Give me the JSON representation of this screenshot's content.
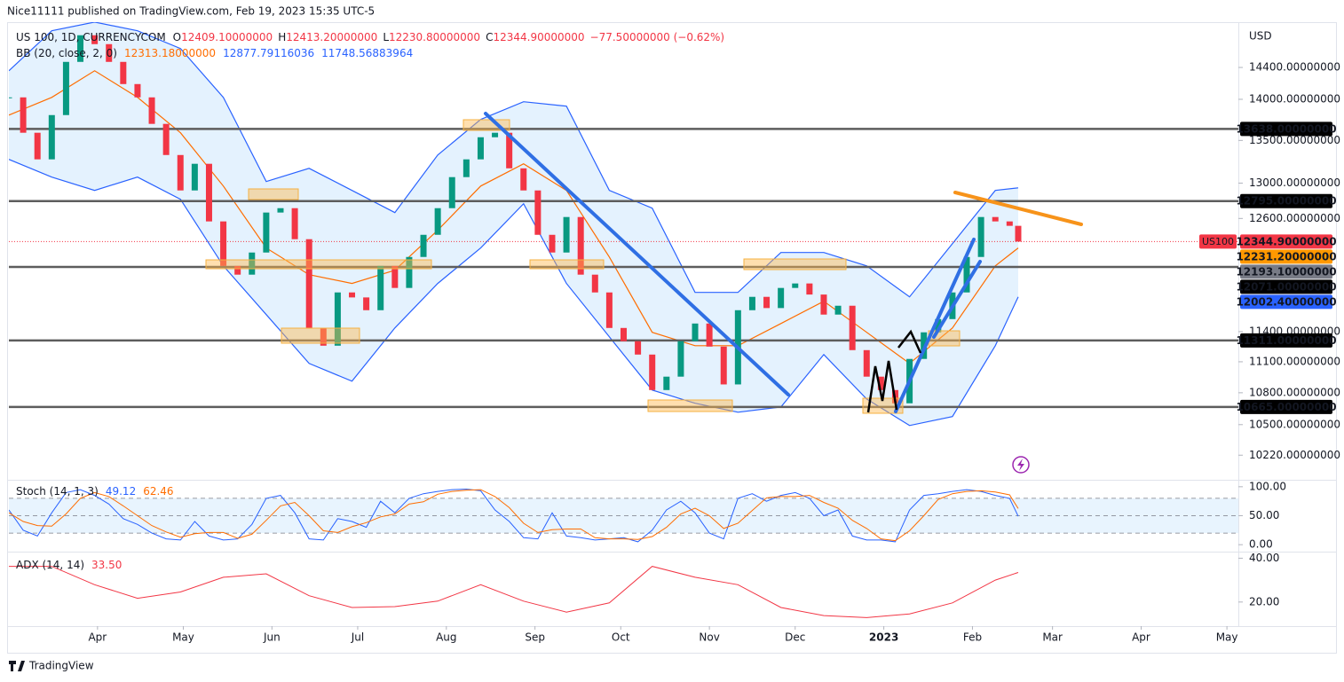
{
  "publisher": "Nice11111 published on TradingView.com, Feb 19, 2023 15:35 UTC-5",
  "brand": "TradingView",
  "chart_data": [
    {
      "type": "candlestick",
      "header": {
        "symbol": "US 100, 1D, CURRENCYCOM",
        "ohlc": [
          {
            "key": "O",
            "value": "12409.10000000"
          },
          {
            "key": "H",
            "value": "12413.20000000"
          },
          {
            "key": "L",
            "value": "12230.80000000"
          },
          {
            "key": "C",
            "value": "12344.90000000"
          }
        ],
        "change": "−77.50000000 (−0.62%)"
      },
      "bb_legend": {
        "title": "BB (20, close, 2, 0)",
        "values": [
          "12313.18000000",
          "12877.79116036",
          "11748.56883964"
        ],
        "colors": [
          "#ff6d00",
          "#2962ff",
          "#2962ff"
        ]
      },
      "currency": "USD",
      "symbol_tag": "US100",
      "log_scale": true,
      "grid": false,
      "up_color": "#089981",
      "down_color": "#f23645",
      "xlim": [
        "2022-03-01",
        "2023-05-05"
      ],
      "xticks": [
        {
          "value": "2022-04-01",
          "label": "Apr"
        },
        {
          "value": "2022-05-01",
          "label": "May"
        },
        {
          "value": "2022-06-01",
          "label": "Jun"
        },
        {
          "value": "2022-07-01",
          "label": "Jul"
        },
        {
          "value": "2022-08-01",
          "label": "Aug"
        },
        {
          "value": "2022-09-01",
          "label": "Sep"
        },
        {
          "value": "2022-10-01",
          "label": "Oct"
        },
        {
          "value": "2022-11-01",
          "label": "Nov"
        },
        {
          "value": "2022-12-01",
          "label": "Dec"
        },
        {
          "value": "2023-01-01",
          "label": "2023"
        },
        {
          "value": "2023-02-01",
          "label": "Feb"
        },
        {
          "value": "2023-03-01",
          "label": "Mar"
        },
        {
          "value": "2023-04-01",
          "label": "Apr"
        },
        {
          "value": "2023-05-01",
          "label": "May"
        }
      ],
      "ylim": [
        10000,
        15000
      ],
      "yticks": [
        {
          "value": 14400,
          "label": "14400.00000000"
        },
        {
          "value": 14000,
          "label": "14000.00000000"
        },
        {
          "value": 13500,
          "label": "13500.00000000"
        },
        {
          "value": 13000,
          "label": "13000.00000000"
        },
        {
          "value": 12600,
          "label": "12600.00000000"
        },
        {
          "value": 11400,
          "label": "11400.00000000"
        },
        {
          "value": 11100,
          "label": "11100.00000000"
        },
        {
          "value": 10800,
          "label": "10800.00000000"
        },
        {
          "value": 10500,
          "label": "10500.00000000"
        },
        {
          "value": 10220,
          "label": "10220.00000000"
        }
      ],
      "x": [
        "2022-03-01",
        "2022-03-06",
        "2022-03-11",
        "2022-03-16",
        "2022-03-21",
        "2022-03-26",
        "2022-03-31",
        "2022-04-05",
        "2022-04-10",
        "2022-04-15",
        "2022-04-20",
        "2022-04-25",
        "2022-04-30",
        "2022-05-05",
        "2022-05-10",
        "2022-05-15",
        "2022-05-20",
        "2022-05-25",
        "2022-05-30",
        "2022-06-04",
        "2022-06-09",
        "2022-06-14",
        "2022-06-19",
        "2022-06-24",
        "2022-06-29",
        "2022-07-04",
        "2022-07-09",
        "2022-07-14",
        "2022-07-19",
        "2022-07-24",
        "2022-07-29",
        "2022-08-03",
        "2022-08-08",
        "2022-08-13",
        "2022-08-18",
        "2022-08-23",
        "2022-08-28",
        "2022-09-02",
        "2022-09-07",
        "2022-09-12",
        "2022-09-17",
        "2022-09-22",
        "2022-09-27",
        "2022-10-02",
        "2022-10-07",
        "2022-10-12",
        "2022-10-17",
        "2022-10-22",
        "2022-10-27",
        "2022-11-01",
        "2022-11-06",
        "2022-11-11",
        "2022-11-16",
        "2022-11-21",
        "2022-11-26",
        "2022-12-01",
        "2022-12-06",
        "2022-12-11",
        "2022-12-16",
        "2022-12-21",
        "2022-12-26",
        "2022-12-31",
        "2023-01-05",
        "2023-01-10",
        "2023-01-15",
        "2023-01-20",
        "2023-01-25",
        "2023-01-30",
        "2023-02-04",
        "2023-02-09",
        "2023-02-14",
        "2023-02-17"
      ],
      "values": [
        14024,
        13592,
        13276,
        13806,
        14471,
        14816,
        14700,
        14471,
        14190,
        14024,
        13699,
        13327,
        12916,
        13224,
        12567,
        12082,
        11989,
        12226,
        12666,
        12715,
        12371,
        11437,
        11259,
        11802,
        11750,
        11618,
        12082,
        11849,
        12178,
        12419,
        12715,
        13069,
        13276,
        13538,
        13592,
        13171,
        12916,
        12419,
        12226,
        12616,
        11989,
        11802,
        11437,
        11304,
        11171,
        10826,
        10955,
        11304,
        11482,
        11250,
        10880,
        11618,
        11756,
        11640,
        11849,
        11896,
        11780,
        11573,
        11664,
        11215,
        10955,
        10826,
        10700,
        11128,
        11393,
        11527,
        11802,
        12178,
        12616,
        12567,
        12518,
        12344.9
      ],
      "bands": {
        "x": [
          "2022-03-01",
          "2022-03-16",
          "2022-03-31",
          "2022-04-15",
          "2022-04-30",
          "2022-05-15",
          "2022-05-30",
          "2022-06-14",
          "2022-06-29",
          "2022-07-14",
          "2022-07-29",
          "2022-08-13",
          "2022-08-28",
          "2022-09-12",
          "2022-09-27",
          "2022-10-12",
          "2022-10-27",
          "2022-11-11",
          "2022-11-26",
          "2022-12-11",
          "2022-12-26",
          "2023-01-10",
          "2023-01-25",
          "2023-02-09",
          "2023-02-17"
        ],
        "fill": "rgba(33,150,243,0.12)",
        "series": [
          {
            "color": "#2962ff",
            "values": [
              14358,
              14875,
              14990,
              14875,
              14643,
              14024,
              13018,
              13171,
              12916,
              12666,
              13327,
              13753,
              13970,
              13915,
              12916,
              12715,
              11802,
              11802,
              12226,
              12226,
              12082,
              11756,
              12323,
              12916,
              12946
            ]
          },
          {
            "color": "#ff6d00",
            "values": [
              13806,
              14024,
              14358,
              14024,
              13592,
              12966,
              12275,
              11989,
              11896,
              12036,
              12469,
              12966,
              13224,
              12916,
              12178,
              11393,
              11259,
              11259,
              11482,
              11710,
              11393,
              11084,
              11437,
              12082,
              12275
            ]
          },
          {
            "color": "#2962ff",
            "values": [
              13276,
              13069,
              12916,
              13069,
              12815,
              12082,
              11573,
              11084,
              10911,
              11437,
              11896,
              12275,
              12765,
              11896,
              11348,
              10826,
              10700,
              10616,
              10665,
              11171,
              10741,
              10492,
              10575,
              11259,
              11756
            ]
          }
        ]
      },
      "levels": [
        {
          "value": 13638,
          "label": "13638.00000000"
        },
        {
          "value": 12795,
          "label": "12795.00000000"
        },
        {
          "value": 12071,
          "label": "12071.00000000"
        },
        {
          "value": 11311,
          "label": "11311.00000000"
        },
        {
          "value": 10665,
          "label": "10665.00000000"
        }
      ],
      "level_color": "#5d5d5d",
      "price_labels": [
        {
          "value": 12344.9,
          "label": "12344.90000000",
          "color": "#f23645"
        },
        {
          "value": 12231.2,
          "label": "12231.20000000",
          "color": "#ff9800"
        },
        {
          "value": 12193.1,
          "label": "12193.10000000",
          "color": "#787b86"
        },
        {
          "value": 12002.4,
          "label": "12002.40000000",
          "color": "#2962ff"
        }
      ]
    },
    {
      "type": "line",
      "title": "Stoch (14, 1, 3)",
      "xlim": [
        "2022-03-01",
        "2023-05-05"
      ],
      "ylim": [
        -12,
        112
      ],
      "yticks": [
        {
          "value": 100,
          "label": "100.00"
        },
        {
          "value": 50,
          "label": "50.00"
        },
        {
          "value": 0,
          "label": "0.00"
        }
      ],
      "levels": [
        80,
        50,
        20
      ],
      "x": [
        "2022-03-01",
        "2022-03-06",
        "2022-03-11",
        "2022-03-16",
        "2022-03-21",
        "2022-03-26",
        "2022-03-31",
        "2022-04-05",
        "2022-04-10",
        "2022-04-15",
        "2022-04-20",
        "2022-04-25",
        "2022-04-30",
        "2022-05-05",
        "2022-05-10",
        "2022-05-15",
        "2022-05-20",
        "2022-05-25",
        "2022-05-30",
        "2022-06-04",
        "2022-06-09",
        "2022-06-14",
        "2022-06-19",
        "2022-06-24",
        "2022-06-29",
        "2022-07-04",
        "2022-07-09",
        "2022-07-14",
        "2022-07-19",
        "2022-07-24",
        "2022-07-29",
        "2022-08-03",
        "2022-08-08",
        "2022-08-13",
        "2022-08-18",
        "2022-08-23",
        "2022-08-28",
        "2022-09-02",
        "2022-09-07",
        "2022-09-12",
        "2022-09-17",
        "2022-09-22",
        "2022-09-27",
        "2022-10-02",
        "2022-10-07",
        "2022-10-12",
        "2022-10-17",
        "2022-10-22",
        "2022-10-27",
        "2022-11-01",
        "2022-11-06",
        "2022-11-11",
        "2022-11-16",
        "2022-11-21",
        "2022-11-26",
        "2022-12-01",
        "2022-12-06",
        "2022-12-11",
        "2022-12-16",
        "2022-12-21",
        "2022-12-26",
        "2022-12-31",
        "2023-01-05",
        "2023-01-10",
        "2023-01-15",
        "2023-01-20",
        "2023-01-25",
        "2023-01-30",
        "2023-02-04",
        "2023-02-09",
        "2023-02-14",
        "2023-02-17"
      ],
      "series": [
        {
          "color": "#2962ff",
          "values": [
            60,
            25,
            15,
            55,
            90,
            95,
            85,
            70,
            45,
            35,
            20,
            10,
            8,
            40,
            15,
            8,
            10,
            35,
            80,
            85,
            55,
            10,
            8,
            45,
            40,
            30,
            75,
            55,
            80,
            88,
            92,
            95,
            96,
            93,
            60,
            40,
            12,
            10,
            55,
            15,
            12,
            8,
            10,
            12,
            5,
            25,
            60,
            75,
            55,
            20,
            10,
            80,
            88,
            75,
            85,
            90,
            80,
            50,
            60,
            15,
            8,
            8,
            5,
            60,
            85,
            88,
            92,
            95,
            92,
            85,
            80,
            49.12
          ]
        },
        {
          "color": "#ff6d00",
          "values": [
            55,
            40,
            33,
            32,
            53,
            80,
            90,
            83,
            67,
            50,
            33,
            22,
            13,
            19,
            21,
            21,
            11,
            18,
            42,
            67,
            73,
            50,
            24,
            21,
            31,
            38,
            48,
            53,
            70,
            74,
            87,
            92,
            94,
            95,
            83,
            64,
            37,
            21,
            26,
            27,
            27,
            12,
            10,
            10,
            9,
            14,
            30,
            53,
            63,
            50,
            28,
            37,
            59,
            81,
            83,
            83,
            85,
            73,
            63,
            42,
            28,
            10,
            7,
            24,
            50,
            78,
            88,
            92,
            93,
            91,
            86,
            62.46
          ]
        }
      ]
    },
    {
      "type": "line",
      "title": "ADX (14, 14)",
      "xlim": [
        "2022-03-01",
        "2023-05-05"
      ],
      "ylim": [
        9,
        43
      ],
      "yticks": [
        {
          "value": 40,
          "label": "40.00"
        },
        {
          "value": 20,
          "label": "20.00"
        }
      ],
      "x": [
        "2022-03-01",
        "2022-03-16",
        "2022-03-31",
        "2022-04-15",
        "2022-04-30",
        "2022-05-15",
        "2022-05-30",
        "2022-06-14",
        "2022-06-29",
        "2022-07-14",
        "2022-07-29",
        "2022-08-13",
        "2022-08-28",
        "2022-09-12",
        "2022-09-27",
        "2022-10-12",
        "2022-10-27",
        "2022-11-11",
        "2022-11-26",
        "2022-12-11",
        "2022-12-26",
        "2023-01-10",
        "2023-01-25",
        "2023-02-09",
        "2023-02-17"
      ],
      "series": [
        {
          "color": "#f23645",
          "values": [
            36.3,
            36.3,
            27.9,
            21.7,
            24.6,
            31.3,
            32.9,
            22.9,
            17.5,
            17.9,
            20.4,
            27.9,
            20.4,
            15.4,
            19.6,
            36.3,
            31.3,
            27.9,
            17.5,
            13.8,
            12.9,
            14.6,
            19.6,
            30,
            33.5
          ],
          "value_labels": [
            null,
            null,
            null,
            null,
            null,
            null,
            null,
            null,
            null,
            null,
            null,
            null,
            null,
            null,
            null,
            null,
            null,
            null,
            null,
            null,
            null,
            null,
            null,
            null,
            "33.50"
          ]
        }
      ]
    }
  ]
}
